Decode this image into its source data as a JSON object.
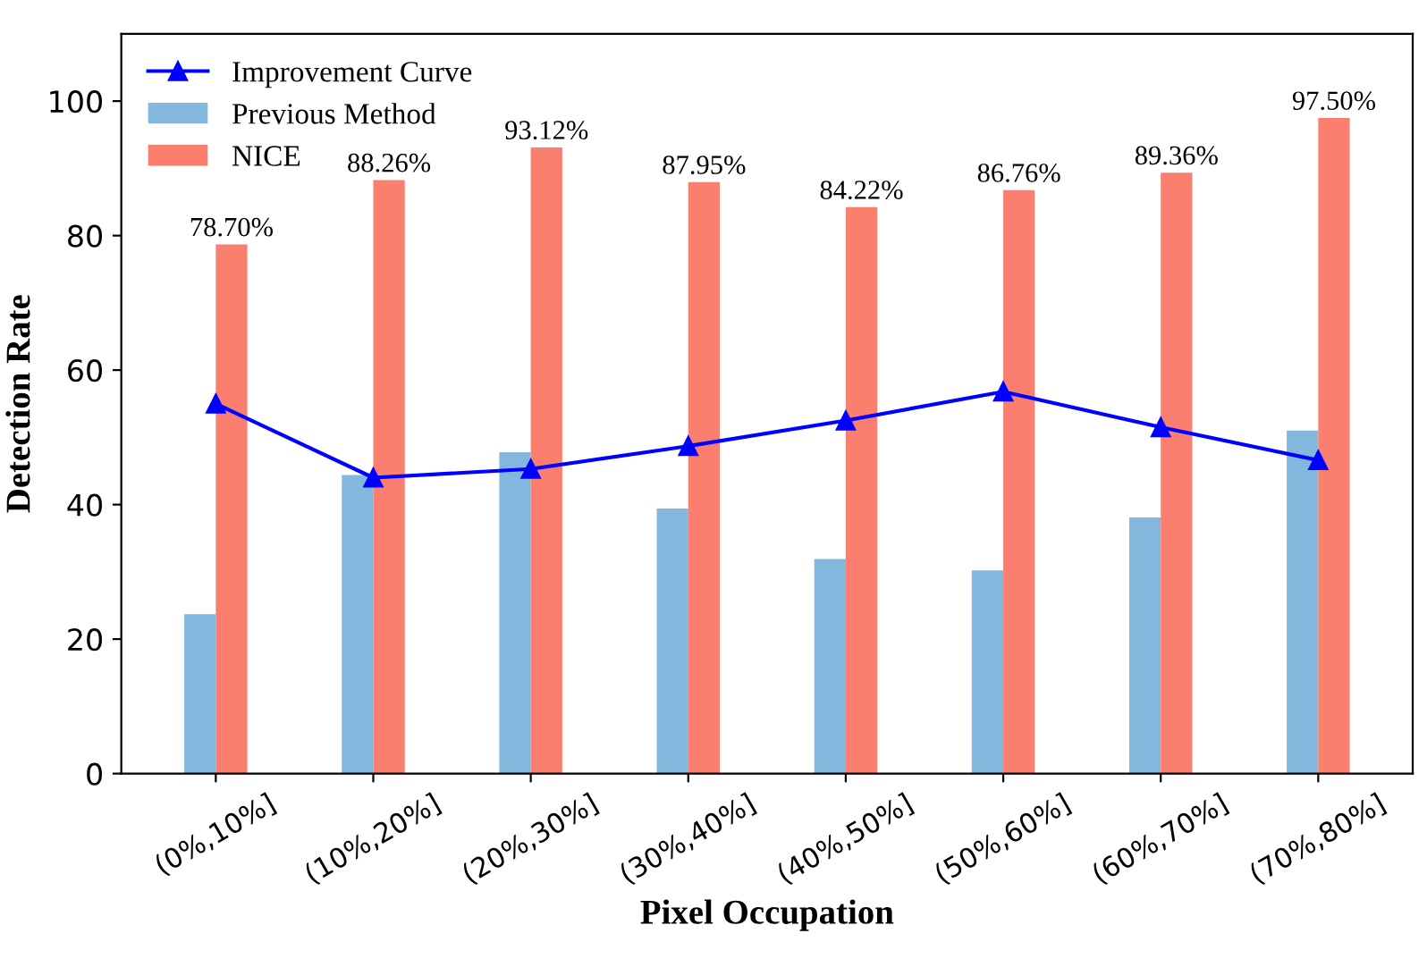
{
  "chart_data": {
    "type": "bar",
    "xlabel": "Pixel Occupation",
    "ylabel": "Detection Rate",
    "categories": [
      "(0%,10%]",
      "(10%,20%]",
      "(20%,30%]",
      "(30%,40%]",
      "(40%,50%]",
      "(50%,60%]",
      "(60%,70%]",
      "(70%,80%]"
    ],
    "series": [
      {
        "name": "Improvement Curve",
        "type": "line",
        "color": "#0000ff",
        "marker": "triangle",
        "values": [
          55.0,
          44.0,
          45.3,
          48.7,
          52.5,
          56.8,
          51.5,
          46.6
        ]
      },
      {
        "name": "Previous Method",
        "color": "#82b7de",
        "values": [
          23.7,
          44.4,
          47.8,
          39.4,
          31.9,
          30.2,
          38.1,
          51.0
        ]
      },
      {
        "name": "NICE",
        "color": "#fa7f6f",
        "values": [
          78.7,
          88.26,
          93.12,
          87.95,
          84.22,
          86.76,
          89.36,
          97.5
        ],
        "value_labels": [
          "78.70%",
          "88.26%",
          "93.12%",
          "87.95%",
          "84.22%",
          "86.76%",
          "89.36%",
          "97.50%"
        ]
      }
    ],
    "ylim": [
      0,
      110
    ],
    "yticks": [
      0,
      20,
      40,
      60,
      80,
      100
    ],
    "grid": false,
    "legend": "top left"
  }
}
